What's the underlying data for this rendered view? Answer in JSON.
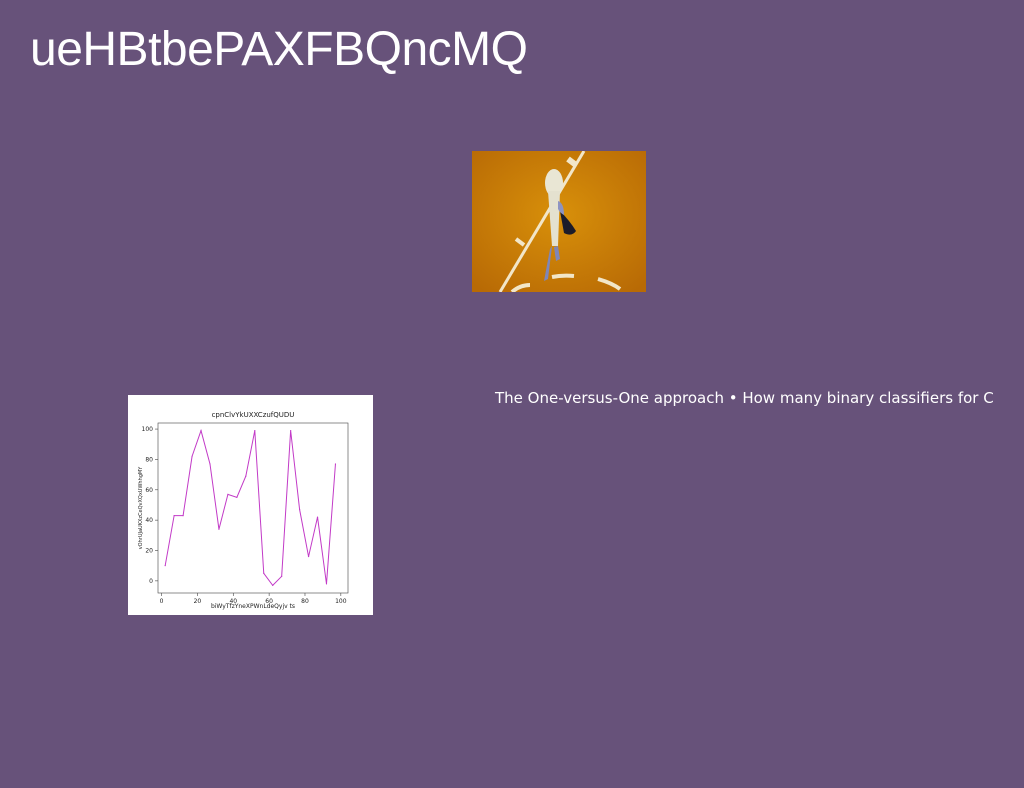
{
  "slide": {
    "title": "ueHBtbePAXFBQncMQ",
    "caption": "The One-versus-One approach • How many binary classifiers for C"
  },
  "colors": {
    "background": "#67527a",
    "line": "#c23ac7"
  },
  "chart_data": {
    "type": "line",
    "title": "cpnClvYkUXXCzufQUDU",
    "xlabel": "biWyTfzYneXPWnLdeQyjv ts",
    "ylabel": "vOhrUJaUKXzCeQvXQxUWhhgMY",
    "xlim": [
      -2,
      104
    ],
    "ylim": [
      -8,
      104
    ],
    "xticks": [
      0,
      20,
      40,
      60,
      80,
      100
    ],
    "yticks": [
      0,
      20,
      40,
      60,
      80,
      100
    ],
    "grid": false,
    "x": [
      2,
      7,
      12,
      17,
      22,
      27,
      32,
      37,
      42,
      47,
      52,
      57,
      62,
      67,
      72,
      77,
      82,
      87,
      92,
      97
    ],
    "series": [
      {
        "values": [
          10,
          43,
          43,
          82,
          99,
          77,
          34,
          57,
          55,
          69,
          99,
          5,
          -3,
          3,
          99,
          47,
          16,
          42,
          -2,
          77
        ]
      }
    ]
  }
}
